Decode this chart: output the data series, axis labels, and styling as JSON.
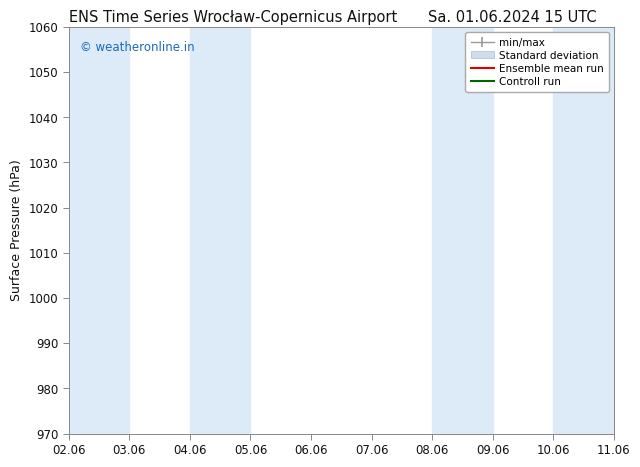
{
  "title_left": "ENS Time Series Wrocław-Copernicus Airport",
  "title_right": "Sa. 01.06.2024 15 UTC",
  "ylabel": "Surface Pressure (hPa)",
  "ylim": [
    970,
    1060
  ],
  "yticks": [
    970,
    980,
    990,
    1000,
    1010,
    1020,
    1030,
    1040,
    1050,
    1060
  ],
  "xlim": [
    0,
    9
  ],
  "xtick_labels": [
    "02.06",
    "03.06",
    "04.06",
    "05.06",
    "06.06",
    "07.06",
    "08.06",
    "09.06",
    "10.06",
    "11.06"
  ],
  "xtick_positions": [
    0,
    1,
    2,
    3,
    4,
    5,
    6,
    7,
    8,
    9
  ],
  "watermark": "© weatheronline.in",
  "watermark_color": "#1a6abf",
  "bg_color": "#ffffff",
  "plot_bg_color": "#ffffff",
  "shaded_bands": [
    {
      "x_start": 0.0,
      "x_end": 1.0,
      "color": "#ddeaf7"
    },
    {
      "x_start": 2.0,
      "x_end": 3.0,
      "color": "#ddeaf7"
    },
    {
      "x_start": 6.0,
      "x_end": 7.0,
      "color": "#ddeaf7"
    },
    {
      "x_start": 8.0,
      "x_end": 9.0,
      "color": "#ddeaf7"
    }
  ],
  "legend_entries": [
    {
      "label": "min/max",
      "color": "#aaaaaa",
      "style": "minmax"
    },
    {
      "label": "Standard deviation",
      "color": "#ccdded",
      "style": "patch"
    },
    {
      "label": "Ensemble mean run",
      "color": "#dd0000",
      "style": "line"
    },
    {
      "label": "Controll run",
      "color": "#006600",
      "style": "line"
    }
  ],
  "font_color": "#111111",
  "title_fontsize": 10.5,
  "label_fontsize": 9,
  "tick_fontsize": 8.5
}
